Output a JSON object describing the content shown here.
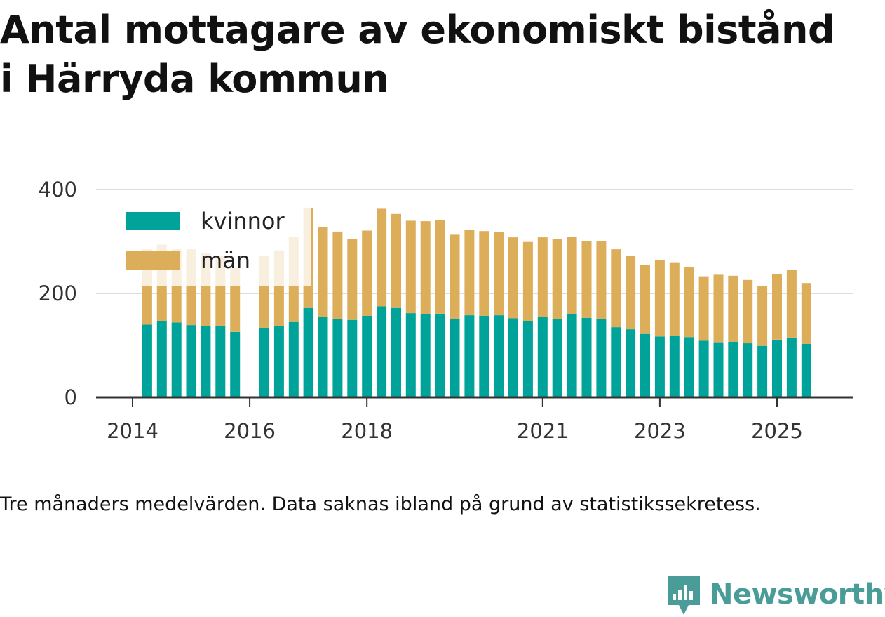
{
  "title_line1": "Antal mottagare av ekonomiskt bistånd",
  "title_line2": "i Härryda kommun",
  "note": "Tre månaders medelvärden. Data saknas ibland på grund av statistikssekretess.",
  "brand": {
    "name": "Newsworthy",
    "icon": "newsworthy-logo-icon",
    "color": "#4a9c99"
  },
  "colors": {
    "kvinnor": "#00a39a",
    "man": "#dcae5a",
    "grid": "#dddddd",
    "axis": "#333333"
  },
  "chart_data": {
    "type": "bar",
    "stacked": true,
    "title": "Antal mottagare av ekonomiskt bistånd i Härryda kommun",
    "xlabel": "",
    "ylabel": "",
    "ylim": [
      0,
      400
    ],
    "yticks": [
      0,
      200,
      400
    ],
    "xlim": [
      2013.6,
      2026.3
    ],
    "xticks": [
      2014,
      2016,
      2018,
      2021,
      2023,
      2025
    ],
    "grid": true,
    "legend": "top-left",
    "x": [
      2014.25,
      2014.5,
      2014.75,
      2015.0,
      2015.25,
      2015.5,
      2015.75,
      2016.25,
      2016.5,
      2016.75,
      2017.0,
      2017.25,
      2017.5,
      2017.75,
      2018.0,
      2018.25,
      2018.5,
      2018.75,
      2019.0,
      2019.25,
      2019.5,
      2019.75,
      2020.0,
      2020.25,
      2020.5,
      2020.75,
      2021.0,
      2021.25,
      2021.5,
      2021.75,
      2022.0,
      2022.25,
      2022.5,
      2022.75,
      2023.0,
      2023.25,
      2023.5,
      2023.75,
      2024.0,
      2024.25,
      2024.5,
      2024.75,
      2025.0,
      2025.25,
      2025.5
    ],
    "series": [
      {
        "name": "kvinnor",
        "color": "#00a39a",
        "values": [
          140,
          146,
          144,
          139,
          137,
          137,
          126,
          134,
          137,
          145,
          172,
          155,
          150,
          149,
          157,
          175,
          172,
          162,
          160,
          161,
          151,
          158,
          157,
          158,
          152,
          146,
          155,
          150,
          160,
          153,
          151,
          135,
          131,
          122,
          117,
          118,
          116,
          109,
          106,
          107,
          104,
          99,
          111,
          115,
          103
        ]
      },
      {
        "name": "män",
        "color": "#dcae5a",
        "values": [
          145,
          148,
          141,
          146,
          140,
          135,
          123,
          138,
          146,
          163,
          193,
          172,
          169,
          156,
          164,
          188,
          181,
          178,
          179,
          180,
          162,
          164,
          163,
          160,
          156,
          153,
          153,
          155,
          149,
          148,
          150,
          150,
          142,
          133,
          147,
          142,
          134,
          124,
          130,
          127,
          122,
          115,
          126,
          130,
          117
        ]
      }
    ]
  }
}
